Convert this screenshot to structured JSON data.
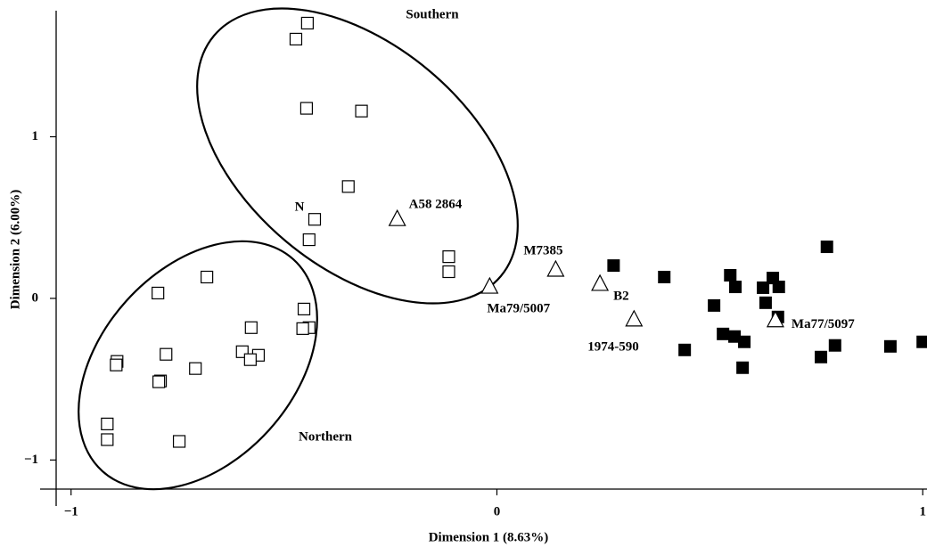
{
  "chart_data": {
    "type": "scatter",
    "x_label": "Dimension 1 (8.63%)",
    "y_label": "Dimension 2 (6.00%)",
    "xlim": [
      -1.035,
      1.01
    ],
    "ylim": [
      -1.18,
      1.78
    ],
    "xticks": [
      {
        "value": -1,
        "label": "−1"
      },
      0,
      1
    ],
    "yticks": [
      {
        "value": -1,
        "label": "−1"
      },
      0,
      1
    ],
    "series": [
      {
        "marker": "square-open",
        "color": "#000000",
        "x": [
          -0.445,
          -0.472,
          -0.447,
          -0.318,
          -0.349,
          -0.428,
          -0.441,
          -0.113,
          -0.113,
          -0.681,
          -0.796,
          -0.453,
          -0.577,
          -0.441,
          -0.456,
          -0.598,
          -0.56,
          -0.579,
          -0.777,
          -0.708,
          -0.892,
          -0.894,
          -0.79,
          -0.794,
          -0.915,
          -0.915,
          -0.746
        ],
        "values": [
          1.703,
          1.604,
          1.176,
          1.159,
          0.692,
          0.489,
          0.363,
          0.258,
          0.165,
          0.132,
          0.033,
          -0.066,
          -0.181,
          -0.181,
          -0.187,
          -0.33,
          -0.352,
          -0.379,
          -0.346,
          -0.434,
          -0.39,
          -0.412,
          -0.511,
          -0.516,
          -0.777,
          -0.874,
          -0.885
        ]
      },
      {
        "marker": "square-filled",
        "color": "#000000",
        "x": [
          0.274,
          0.393,
          0.548,
          0.56,
          0.648,
          0.662,
          0.625,
          0.775,
          0.51,
          0.631,
          0.66,
          0.531,
          0.558,
          0.581,
          0.441,
          0.761,
          0.794,
          0.924,
          1.0,
          0.577
        ],
        "values": [
          0.203,
          0.132,
          0.143,
          0.071,
          0.126,
          0.071,
          0.066,
          0.319,
          -0.044,
          -0.027,
          -0.115,
          -0.22,
          -0.236,
          -0.269,
          -0.319,
          -0.363,
          -0.291,
          -0.297,
          -0.269,
          -0.429
        ]
      },
      {
        "marker": "triangle-open",
        "color": "#000000",
        "x": [
          -0.234,
          0.138,
          -0.017,
          0.242,
          0.322,
          0.654
        ],
        "values": [
          0.489,
          0.176,
          0.071,
          0.088,
          -0.132,
          -0.137
        ],
        "labels": [
          "A58 2864",
          "M7385",
          "Ma79/5007",
          "B2",
          "1974-590",
          "Ma77/5097"
        ]
      }
    ],
    "annotations": [
      "Southern",
      "Northern",
      "N"
    ]
  }
}
